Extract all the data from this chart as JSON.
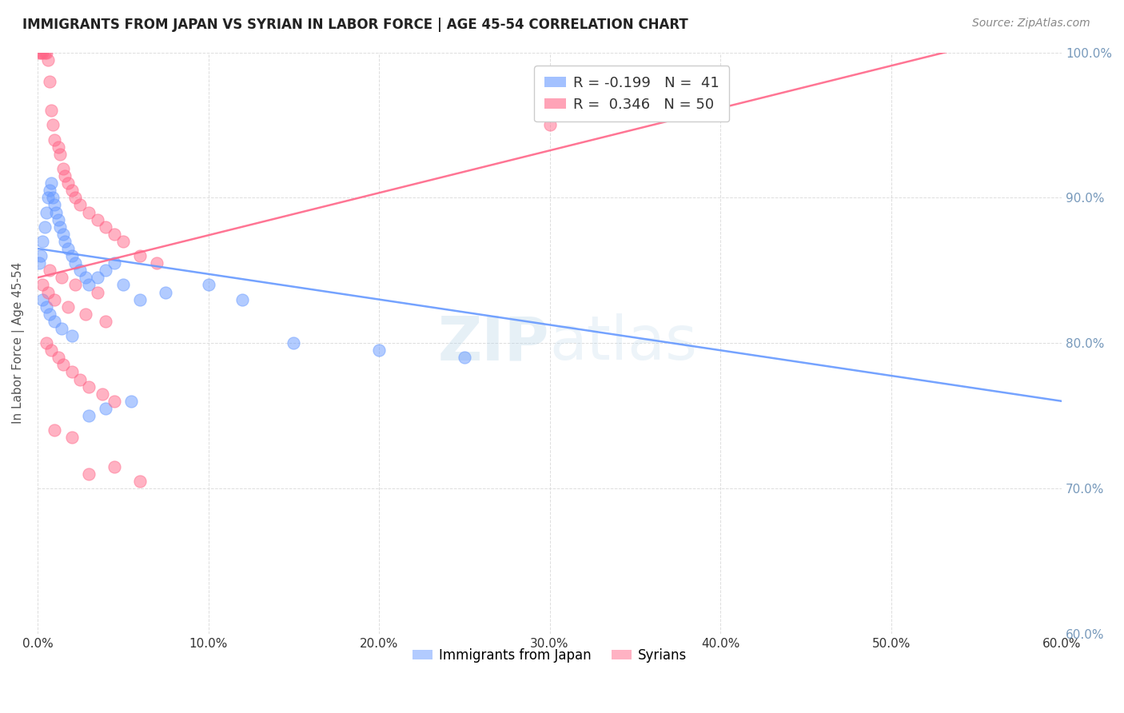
{
  "title": "IMMIGRANTS FROM JAPAN VS SYRIAN IN LABOR FORCE | AGE 45-54 CORRELATION CHART",
  "source": "Source: ZipAtlas.com",
  "ylabel": "In Labor Force | Age 45-54",
  "xlim": [
    0.0,
    60.0
  ],
  "ylim": [
    60.0,
    100.0
  ],
  "xticks": [
    0.0,
    10.0,
    20.0,
    30.0,
    40.0,
    50.0,
    60.0
  ],
  "yticks": [
    60.0,
    70.0,
    80.0,
    90.0,
    100.0
  ],
  "japan_color": "#6699ff",
  "syrian_color": "#ff6688",
  "japan_R": -0.199,
  "japan_N": 41,
  "syrian_R": 0.346,
  "syrian_N": 50,
  "japan_trendline": [
    0.0,
    86.5,
    60.0,
    76.0
  ],
  "syrian_trendline": [
    0.0,
    84.5,
    60.0,
    102.0
  ],
  "watermark": "ZIPatlas",
  "background_color": "#ffffff",
  "grid_color": "#dddddd",
  "japan_x": [
    0.1,
    0.2,
    0.3,
    0.4,
    0.5,
    0.6,
    0.7,
    0.8,
    0.9,
    1.0,
    1.1,
    1.2,
    1.3,
    1.5,
    1.6,
    1.8,
    2.0,
    2.2,
    2.5,
    2.8,
    3.0,
    3.5,
    4.0,
    4.5,
    5.0,
    6.0,
    7.5,
    10.0,
    12.0,
    15.0,
    20.0,
    25.0,
    0.3,
    0.5,
    0.7,
    1.0,
    1.4,
    2.0,
    3.0,
    4.0,
    5.5
  ],
  "japan_y": [
    85.5,
    86.0,
    87.0,
    88.0,
    89.0,
    90.0,
    90.5,
    91.0,
    90.0,
    89.5,
    89.0,
    88.5,
    88.0,
    87.5,
    87.0,
    86.5,
    86.0,
    85.5,
    85.0,
    84.5,
    84.0,
    84.5,
    85.0,
    85.5,
    84.0,
    83.0,
    83.5,
    84.0,
    83.0,
    80.0,
    79.5,
    79.0,
    83.0,
    82.5,
    82.0,
    81.5,
    81.0,
    80.5,
    75.0,
    75.5,
    76.0
  ],
  "syrian_x": [
    0.1,
    0.2,
    0.3,
    0.4,
    0.5,
    0.6,
    0.7,
    0.8,
    0.9,
    1.0,
    1.2,
    1.3,
    1.5,
    1.6,
    1.8,
    2.0,
    2.2,
    2.5,
    3.0,
    3.5,
    4.0,
    4.5,
    5.0,
    6.0,
    7.0,
    0.5,
    0.8,
    1.2,
    1.5,
    2.0,
    2.5,
    3.0,
    3.8,
    4.5,
    0.3,
    0.6,
    1.0,
    1.8,
    2.8,
    4.0,
    0.7,
    1.4,
    2.2,
    3.5,
    1.0,
    2.0,
    3.0,
    4.5,
    6.0,
    30.0
  ],
  "syrian_y": [
    100.0,
    100.0,
    100.0,
    100.0,
    100.0,
    99.5,
    98.0,
    96.0,
    95.0,
    94.0,
    93.5,
    93.0,
    92.0,
    91.5,
    91.0,
    90.5,
    90.0,
    89.5,
    89.0,
    88.5,
    88.0,
    87.5,
    87.0,
    86.0,
    85.5,
    80.0,
    79.5,
    79.0,
    78.5,
    78.0,
    77.5,
    77.0,
    76.5,
    76.0,
    84.0,
    83.5,
    83.0,
    82.5,
    82.0,
    81.5,
    85.0,
    84.5,
    84.0,
    83.5,
    74.0,
    73.5,
    71.0,
    71.5,
    70.5,
    95.0
  ]
}
